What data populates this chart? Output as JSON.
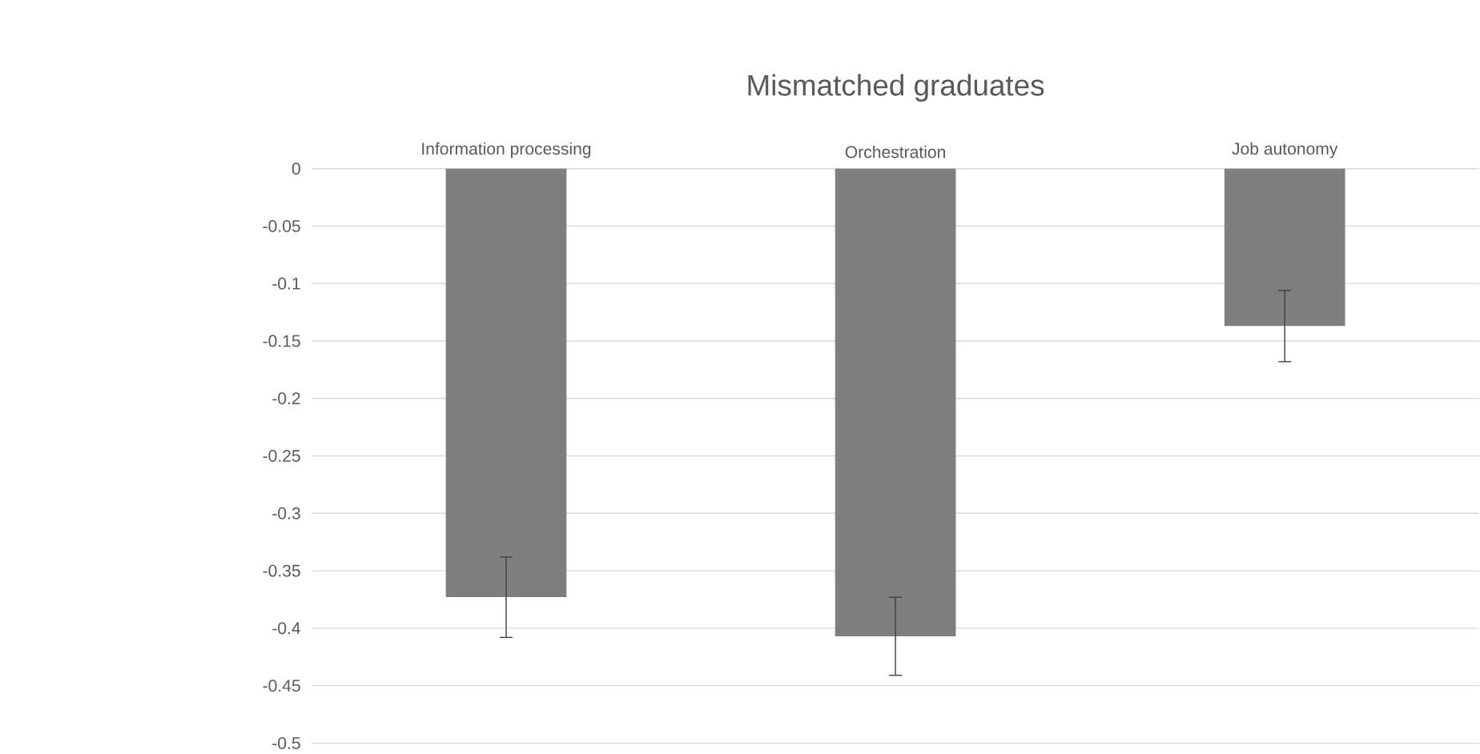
{
  "chart_data": {
    "type": "bar",
    "title": "Mismatched graduates",
    "categories": [
      "Information processing",
      "Orchestration",
      "Job autonomy"
    ],
    "values": [
      -0.373,
      -0.407,
      -0.137
    ],
    "errors": [
      0.035,
      0.034,
      0.031
    ],
    "color": "#7f7f7f",
    "ylim": [
      -0.5,
      0
    ],
    "yticks": [
      0,
      -0.05,
      -0.1,
      -0.15,
      -0.2,
      -0.25,
      -0.3,
      -0.35,
      -0.4,
      -0.45,
      -0.5
    ],
    "grid": "y"
  }
}
